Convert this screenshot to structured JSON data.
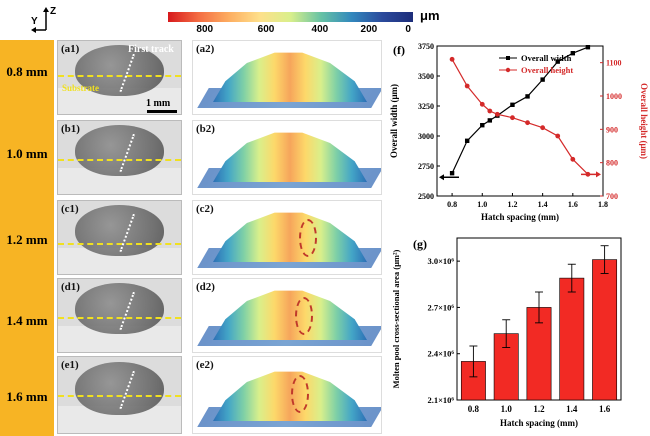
{
  "figure": {
    "axes_icon": {
      "y": "Y",
      "z": "Z"
    },
    "colorbar": {
      "ticks": [
        "800",
        "600",
        "400",
        "200",
        "0"
      ],
      "unit": "μm"
    },
    "rows": [
      {
        "spacing": "0.8 mm",
        "micro_label": "(a1)",
        "surface_label": "(a2)"
      },
      {
        "spacing": "1.0 mm",
        "micro_label": "(b1)",
        "surface_label": "(b2)"
      },
      {
        "spacing": "1.2 mm",
        "micro_label": "(c1)",
        "surface_label": "(c2)"
      },
      {
        "spacing": "1.4 mm",
        "micro_label": "(d1)",
        "surface_label": "(d2)"
      },
      {
        "spacing": "1.6 mm",
        "micro_label": "(e1)",
        "surface_label": "(e2)"
      }
    ],
    "first_track": "First track",
    "substrate": "Substrate",
    "scale_bar": "1 mm"
  },
  "chart_data": [
    {
      "panel": "(f)",
      "type": "line",
      "xlabel": "Hatch spacing (mm)",
      "x": [
        0.8,
        0.9,
        1.0,
        1.05,
        1.1,
        1.2,
        1.3,
        1.4,
        1.5,
        1.6,
        1.7
      ],
      "xlim": [
        0.7,
        1.8
      ],
      "xticks": [
        "0.8",
        "1.0",
        "1.2",
        "1.4",
        "1.6",
        "1.8"
      ],
      "series": [
        {
          "name": "Overall width",
          "axis": "left",
          "color": "#000000",
          "values": [
            2690,
            2960,
            3090,
            3130,
            3170,
            3260,
            3330,
            3470,
            3620,
            3690,
            3740
          ]
        },
        {
          "name": "Overall height",
          "axis": "right",
          "color": "#d42a2a",
          "values": [
            1110,
            1030,
            975,
            955,
            945,
            935,
            920,
            905,
            880,
            810,
            765
          ]
        }
      ],
      "ylabel_left": "Overall width (μm)",
      "ylim_left": [
        2500,
        3750
      ],
      "yticks_left": [
        "2500",
        "2750",
        "3000",
        "3250",
        "3500",
        "3750"
      ],
      "ylabel_right": "Overall height (μm)",
      "ylim_right": [
        700,
        1150
      ],
      "yticks_right": [
        "700",
        "800",
        "900",
        "1000",
        "1100"
      ]
    },
    {
      "panel": "(g)",
      "type": "bar",
      "xlabel": "Hatch spacing (mm)",
      "ylabel": "Molten pool cross-sectional area (μm²)",
      "categories": [
        "0.8",
        "1.0",
        "1.2",
        "1.4",
        "1.6"
      ],
      "values": [
        2350000.0,
        2530000.0,
        2700000.0,
        2890000.0,
        3010000.0
      ],
      "errors": [
        100000.0,
        90000.0,
        100000.0,
        90000.0,
        90000.0
      ],
      "ylim": [
        2100000.0,
        3150000.0
      ],
      "yticks": [
        "2.1×10⁶",
        "2.4×10⁶",
        "2.7×10⁶",
        "3.0×10⁶"
      ],
      "color": "#f22a24"
    }
  ]
}
